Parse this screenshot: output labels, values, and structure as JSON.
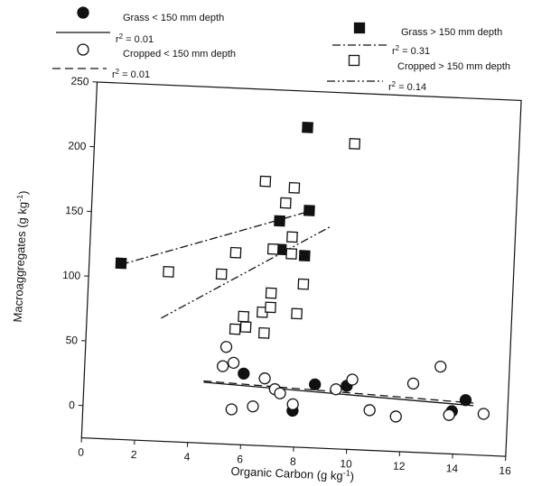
{
  "chart_data": {
    "type": "scatter",
    "xlabel": "Organic Carbon (g kg",
    "xlabel_sup": "-1",
    "xlabel_end": ")",
    "ylabel": "Macroaggregates (g kg",
    "ylabel_sup": "-1",
    "ylabel_end": ")",
    "xlim": [
      0,
      16
    ],
    "ylim": [
      -25,
      250
    ],
    "xticks": [
      "0",
      "2",
      "4",
      "6",
      "8",
      "10",
      "12",
      "14",
      "16"
    ],
    "yticks": [
      "0",
      "50",
      "100",
      "150",
      "200",
      "250"
    ],
    "grid": false,
    "legend_position": "top",
    "series": [
      {
        "name": "Grass < 150 mm depth",
        "marker": "filled-circle",
        "fit_label": "r",
        "fit_sup": "2",
        "fit_value": " = 0.01",
        "fit_style": "solid",
        "fit_line": {
          "x": [
            4.5,
            14.7
          ],
          "y": [
            22,
            13
          ]
        },
        "points": [
          [
            6.0,
            30
          ],
          [
            7.9,
            3
          ],
          [
            8.7,
            24
          ],
          [
            9.9,
            24
          ],
          [
            14.4,
            17
          ],
          [
            13.9,
            8
          ]
        ]
      },
      {
        "name": "Cropped < 150 mm depth",
        "marker": "open-circle",
        "fit_label": "r",
        "fit_sup": "2",
        "fit_value": " = 0.01",
        "fit_style": "dashed",
        "fit_line": {
          "x": [
            4.5,
            14.7
          ],
          "y": [
            23,
            15
          ]
        },
        "points": [
          [
            5.3,
            50
          ],
          [
            5.2,
            35
          ],
          [
            5.6,
            38
          ],
          [
            5.6,
            2
          ],
          [
            6.4,
            5
          ],
          [
            6.8,
            27
          ],
          [
            7.2,
            19
          ],
          [
            7.4,
            16
          ],
          [
            7.9,
            8
          ],
          [
            9.5,
            21
          ],
          [
            10.1,
            29
          ],
          [
            10.8,
            6
          ],
          [
            11.8,
            2
          ],
          [
            12.4,
            28
          ],
          [
            13.4,
            42
          ],
          [
            13.8,
            5
          ],
          [
            15.1,
            7
          ]
        ]
      },
      {
        "name": "Grass > 150 mm depth",
        "marker": "filled-square",
        "fit_label": "r",
        "fit_sup": "2",
        "fit_value": " = 0.31",
        "fit_style": "dash-dot",
        "fit_line": {
          "x": [
            1.2,
            8.3
          ],
          "y": [
            110,
            158
          ]
        },
        "points": [
          [
            1.2,
            111
          ],
          [
            7.1,
            149
          ],
          [
            8.2,
            158
          ],
          [
            8.0,
            222
          ],
          [
            7.2,
            127
          ],
          [
            8.1,
            123
          ]
        ]
      },
      {
        "name": "Cropped > 150 mm depth",
        "marker": "open-square",
        "fit_label": "r",
        "fit_sup": "2",
        "fit_value": " = 0.14",
        "fit_style": "dash-dot-dot",
        "fit_line": {
          "x": [
            2.8,
            9.0
          ],
          "y": [
            70,
            146
          ]
        },
        "points": [
          [
            3.0,
            106
          ],
          [
            5.0,
            106
          ],
          [
            5.5,
            123
          ],
          [
            5.6,
            64
          ],
          [
            6.0,
            66
          ],
          [
            5.9,
            74
          ],
          [
            6.5,
            179
          ],
          [
            6.6,
            78
          ],
          [
            6.7,
            62
          ],
          [
            6.9,
            93
          ],
          [
            6.9,
            82
          ],
          [
            6.9,
            127
          ],
          [
            7.3,
            163
          ],
          [
            7.6,
            175
          ],
          [
            7.6,
            137
          ],
          [
            7.6,
            124
          ],
          [
            7.9,
            78
          ],
          [
            8.1,
            101
          ],
          [
            9.8,
            211
          ]
        ]
      }
    ]
  }
}
